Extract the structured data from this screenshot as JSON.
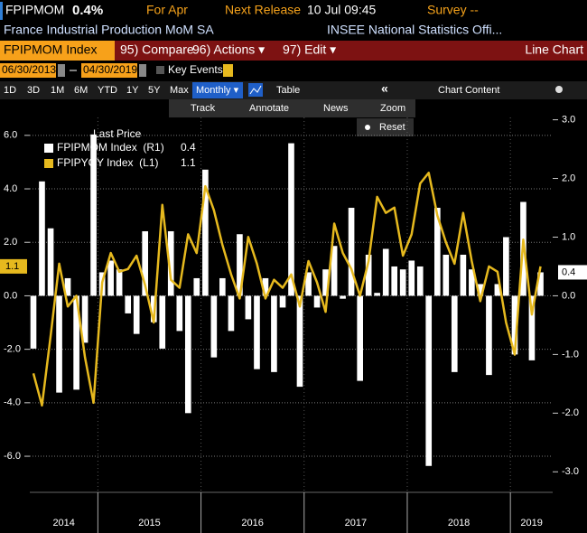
{
  "header": {
    "ticker": "FPIPMOM",
    "value": "0.4%",
    "period": "For Apr",
    "next_release_label": "Next Release",
    "next_release": "10 Jul 09:45",
    "survey": "Survey --",
    "description": "France Industrial Production MoM SA",
    "source": "INSEE National Statistics Offi..."
  },
  "toolbar": {
    "security": "FPIPMOM Index",
    "menu": [
      "95) Compare",
      "96) Actions ▾",
      "97) Edit ▾"
    ],
    "view": "Line Chart"
  },
  "range": {
    "start": "06/30/2013",
    "end": "04/30/2019",
    "key_events": "Key Events"
  },
  "periods": [
    "1D",
    "3D",
    "1M",
    "6M",
    "YTD",
    "1Y",
    "5Y",
    "Max"
  ],
  "frequency": "Monthly ▾",
  "table": "Table",
  "collapse": "«",
  "chart_content": "Chart Content",
  "tools": [
    "Track",
    "Annotate",
    "News",
    "Zoom"
  ],
  "reset": "Reset",
  "chart_data": {
    "type": "bar_line",
    "legend_title": "Last Price",
    "x": [
      2014.375,
      2014.458,
      2014.542,
      2014.625,
      2014.708,
      2014.792,
      2014.875,
      2014.958,
      2015.042,
      2015.125,
      2015.208,
      2015.292,
      2015.375,
      2015.458,
      2015.542,
      2015.625,
      2015.708,
      2015.792,
      2015.875,
      2015.958,
      2016.042,
      2016.125,
      2016.208,
      2016.292,
      2016.375,
      2016.458,
      2016.542,
      2016.625,
      2016.708,
      2016.792,
      2016.875,
      2016.958,
      2017.042,
      2017.125,
      2017.208,
      2017.292,
      2017.375,
      2017.458,
      2017.542,
      2017.625,
      2017.708,
      2017.792,
      2017.875,
      2017.958,
      2018.042,
      2018.125,
      2018.208,
      2018.292,
      2018.375,
      2018.458,
      2018.542,
      2018.625,
      2018.708,
      2018.792,
      2018.875,
      2018.958,
      2019.042,
      2019.125,
      2019.208,
      2019.292
    ],
    "xlim": [
      2014.34,
      2019.41
    ],
    "xticks": [
      2015,
      2016,
      2017,
      2018,
      2019
    ],
    "year_labels": [
      2014,
      2015,
      2016,
      2017,
      2018,
      2019
    ],
    "series": [
      {
        "name": "FPIPMOM Index  (R1)",
        "color": "#ffffff",
        "kind": "bar",
        "axis": "y2",
        "values": [
          -0.9,
          1.95,
          1.15,
          -1.65,
          0.3,
          -1.6,
          -0.8,
          2.75,
          0.4,
          0.6,
          0.45,
          -0.3,
          -0.65,
          1.1,
          -0.45,
          -0.9,
          1.1,
          -0.6,
          -2.0,
          0.3,
          2.15,
          -1.05,
          0.3,
          -0.6,
          1.05,
          -0.4,
          -1.25,
          0.3,
          -1.3,
          -0.2,
          2.6,
          -1.55,
          0.4,
          -0.2,
          0.45,
          0.85,
          -0.05,
          1.5,
          -1.45,
          0.7,
          0.05,
          0.8,
          0.5,
          0.45,
          0.6,
          0.5,
          -2.9,
          1.5,
          0.7,
          -1.3,
          0.7,
          0.45,
          0.2,
          -1.35,
          0.2,
          1.0,
          -1.0,
          1.6,
          -1.1,
          0.4
        ]
      },
      {
        "name": "FPIPYOY Index  (L1)",
        "color": "#e6b91e",
        "kind": "line",
        "axis": "y",
        "values": [
          -2.9,
          -4.1,
          -1.5,
          1.2,
          -0.4,
          0.0,
          -2.3,
          -4.0,
          0.5,
          1.6,
          0.9,
          1.0,
          1.5,
          0.4,
          -1.0,
          3.4,
          0.6,
          0.3,
          2.3,
          1.6,
          4.1,
          3.2,
          1.9,
          0.8,
          -0.1,
          2.2,
          1.2,
          -0.1,
          0.6,
          0.3,
          0.8,
          -0.4,
          1.3,
          0.5,
          -0.6,
          2.7,
          1.6,
          1.0,
          0.0,
          1.3,
          3.7,
          3.1,
          3.3,
          1.5,
          2.3,
          4.2,
          4.6,
          3.0,
          2.0,
          1.2,
          3.1,
          1.3,
          -0.2,
          1.1,
          0.9,
          -1.0,
          -2.2,
          2.1,
          -0.7,
          1.1
        ]
      }
    ],
    "ylim": [
      -7.35,
      6.67
    ],
    "yticks": [
      {
        "value": 6,
        "label": "6.0"
      },
      {
        "value": 4,
        "label": "4.0"
      },
      {
        "value": 2,
        "label": "2.0"
      },
      {
        "value": 0,
        "label": "0.0"
      },
      {
        "value": -2,
        "label": "-2.0"
      },
      {
        "value": -4,
        "label": "-4.0"
      },
      {
        "value": -6,
        "label": "-6.0"
      }
    ],
    "y2lim": [
      -3.35,
      3.04
    ],
    "y2ticks": [
      {
        "value": 3,
        "label": "3.0"
      },
      {
        "value": 2,
        "label": "2.0"
      },
      {
        "value": 1,
        "label": "1.0"
      },
      {
        "value": 0,
        "label": "0.0"
      },
      {
        "value": -1,
        "label": "-1.0"
      },
      {
        "value": -2,
        "label": "-2.0"
      },
      {
        "value": -3,
        "label": "-3.0"
      }
    ],
    "grid": true
  }
}
